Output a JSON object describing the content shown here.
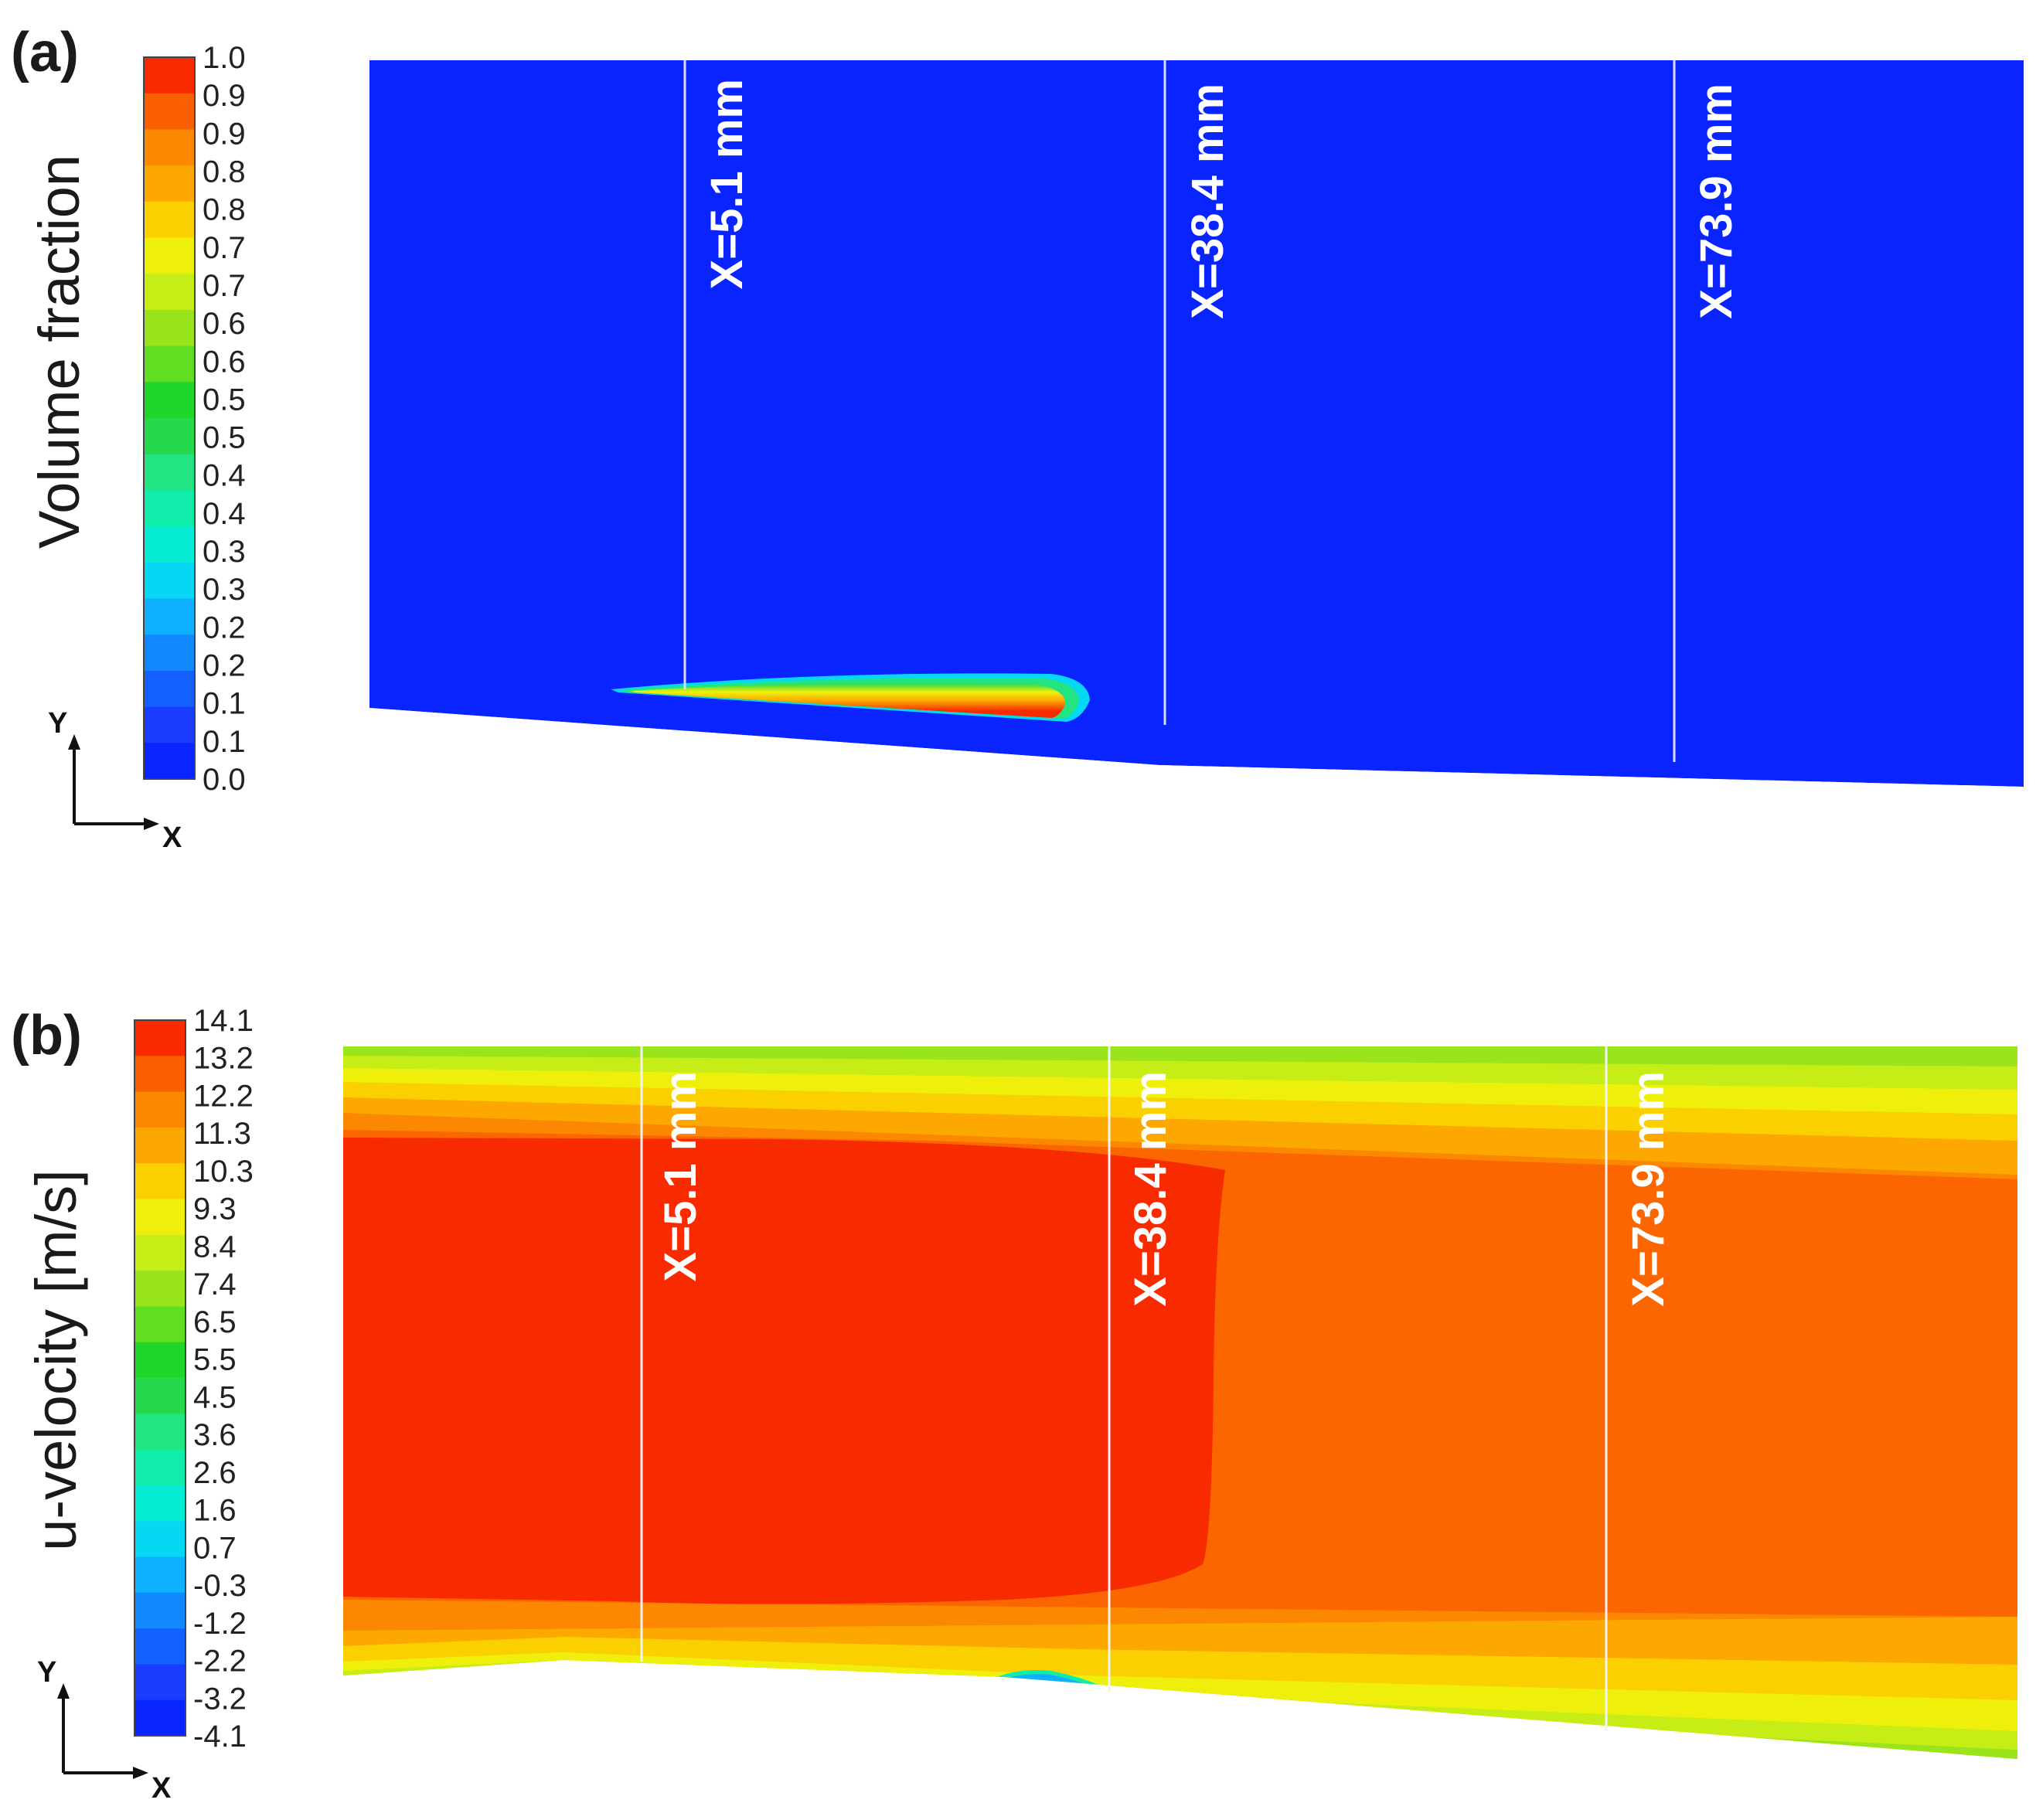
{
  "chart_data": [
    {
      "type": "heatmap",
      "panel_label": "(a)",
      "colorbar_title": "Volume fraction",
      "colorbar_ticks": [
        "1.0",
        "0.9",
        "0.9",
        "0.8",
        "0.8",
        "0.7",
        "0.7",
        "0.6",
        "0.6",
        "0.5",
        "0.5",
        "0.4",
        "0.4",
        "0.3",
        "0.3",
        "0.2",
        "0.2",
        "0.1",
        "0.1",
        "0.0"
      ],
      "colorbar_range": [
        0.0,
        1.0
      ],
      "probe_lines": [
        "X=5.1 mm",
        "X=38.4 mm",
        "X=73.9 mm"
      ],
      "axes": {
        "y": "Y",
        "x": "X"
      },
      "field_description_value_bulk": 0.0,
      "field_max_near_wall": 1.0
    },
    {
      "type": "heatmap",
      "panel_label": "(b)",
      "colorbar_title": "u-velocity [m/s]",
      "colorbar_ticks": [
        "14.1",
        "13.2",
        "12.2",
        "11.3",
        "10.3",
        "9.3",
        "8.4",
        "7.4",
        "6.5",
        "5.5",
        "4.5",
        "3.6",
        "2.6",
        "1.6",
        "0.7",
        "-0.3",
        "-1.2",
        "-2.2",
        "-3.2",
        "-4.1"
      ],
      "colorbar_range": [
        -4.1,
        14.1
      ],
      "probe_lines": [
        "X=5.1 mm",
        "X=38.4 mm",
        "X=73.9 mm"
      ],
      "axes": {
        "y": "Y",
        "x": "X"
      }
    }
  ],
  "colors": {
    "scale": [
      "#0a24ff",
      "#1a3cff",
      "#1460ff",
      "#1188ff",
      "#0fb0ff",
      "#06d8f4",
      "#06ecd4",
      "#10ecaa",
      "#22e480",
      "#26d84c",
      "#1ed62c",
      "#60de22",
      "#9ae41c",
      "#c6ee16",
      "#eef00c",
      "#fad000",
      "#fca800",
      "#fb8800",
      "#fb6000",
      "#f72a00"
    ],
    "panel_a_bulk": "#0a24ff",
    "panel_b_core": "#f72a00",
    "panel_b_bulk": "#fb6600"
  }
}
